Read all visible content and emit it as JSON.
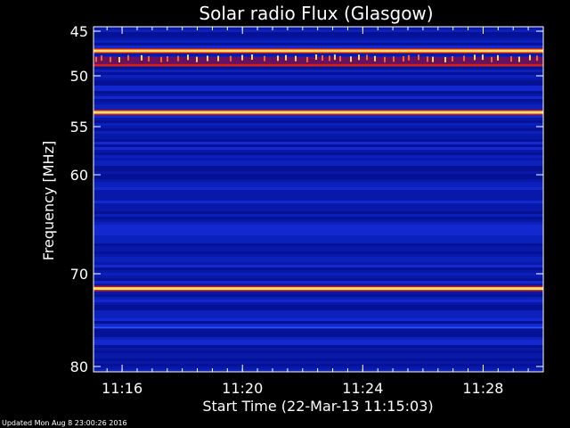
{
  "chart_data": {
    "type": "heatmap",
    "title": "Solar radio Flux (Glasgow)",
    "xlabel": "Start Time (22-Mar-13 11:15:03)",
    "ylabel": "Frequency [MHz]",
    "x_ticks": [
      "11:16",
      "11:20",
      "11:24",
      "11:28"
    ],
    "x_tick_minutes": [
      16,
      20,
      24,
      28
    ],
    "x_range_minutes": [
      15.05,
      30.0
    ],
    "y_ticks": [
      45,
      50,
      55,
      60,
      70,
      80
    ],
    "y_ticks_minor_nonlinear": true,
    "y_range": [
      45,
      80
    ],
    "background_color": "#0a1ab0",
    "bands": [
      {
        "frequency": 47.2,
        "intensity": "high"
      },
      {
        "frequency": 48.2,
        "intensity": "bursty"
      },
      {
        "frequency": 48.8,
        "intensity": "medium"
      },
      {
        "frequency": 53.6,
        "intensity": "high"
      },
      {
        "frequency": 71.6,
        "intensity": "high"
      },
      {
        "frequency": 75.8,
        "intensity": "low"
      }
    ]
  },
  "footer": {
    "updated": "Updated Mon Aug  8 23:00:26 2016"
  }
}
